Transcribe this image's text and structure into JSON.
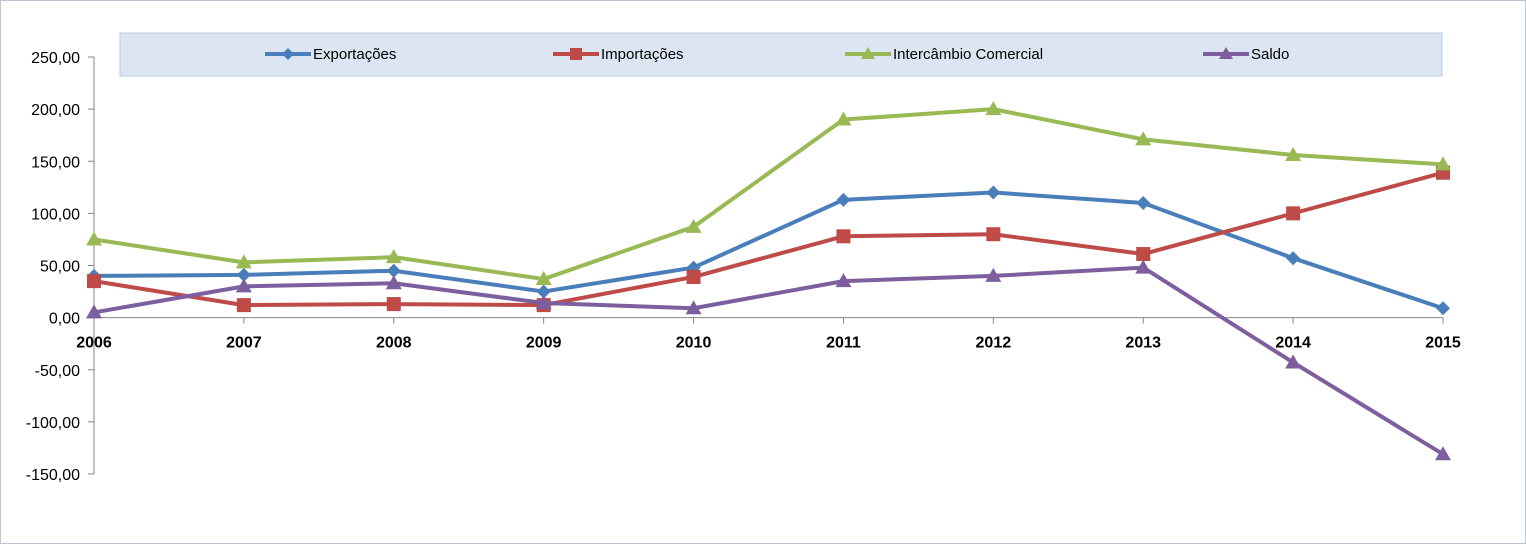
{
  "chart_data": {
    "type": "line",
    "categories": [
      "2006",
      "2007",
      "2008",
      "2009",
      "2010",
      "2011",
      "2012",
      "2013",
      "2014",
      "2015"
    ],
    "ylim": [
      -150,
      250
    ],
    "y_ticks": [
      250,
      200,
      150,
      100,
      50,
      0,
      -50,
      -100,
      -150
    ],
    "y_tick_labels": [
      "250,00",
      "200,00",
      "150,00",
      "100,00",
      "50,00",
      "0,00",
      "-50,00",
      "-100,00",
      "-150,00"
    ],
    "grid": false,
    "legend": "top",
    "series": [
      {
        "name": "Exportações",
        "color": "#4a7ebb",
        "marker": "diamond",
        "values": [
          40,
          41,
          45,
          25,
          48,
          113,
          120,
          110,
          57,
          9
        ]
      },
      {
        "name": "Importações",
        "color": "#be4b48",
        "marker": "square",
        "values": [
          35,
          12,
          13,
          12,
          39,
          78,
          80,
          61,
          100,
          139
        ]
      },
      {
        "name": "Intercâmbio Comercial",
        "color": "#98b954",
        "marker": "triangle",
        "values": [
          75,
          53,
          58,
          37,
          87,
          190,
          200,
          171,
          156,
          147
        ]
      },
      {
        "name": "Saldo",
        "color": "#7d5fa0",
        "marker": "triangle",
        "values": [
          5,
          30,
          33,
          14,
          9,
          35,
          40,
          48,
          -43,
          -131
        ]
      }
    ]
  }
}
